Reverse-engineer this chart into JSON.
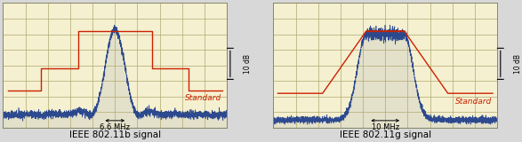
{
  "bg_color": "#f5f0d0",
  "grid_color": "#b0a870",
  "signal_color": "#1a3a8a",
  "standard_color": "#cc2200",
  "title1": "IEEE 802.11b signal",
  "title2": "IEEE 802.11g signal",
  "label1": "6.6 MHz",
  "label2": "10 MHz",
  "db_label": "10 dB",
  "standard_label": "Standard",
  "standard_fontsize": 6.5,
  "title_fontsize": 7.5,
  "label_fontsize": 6.0,
  "db_fontsize": 5.5
}
